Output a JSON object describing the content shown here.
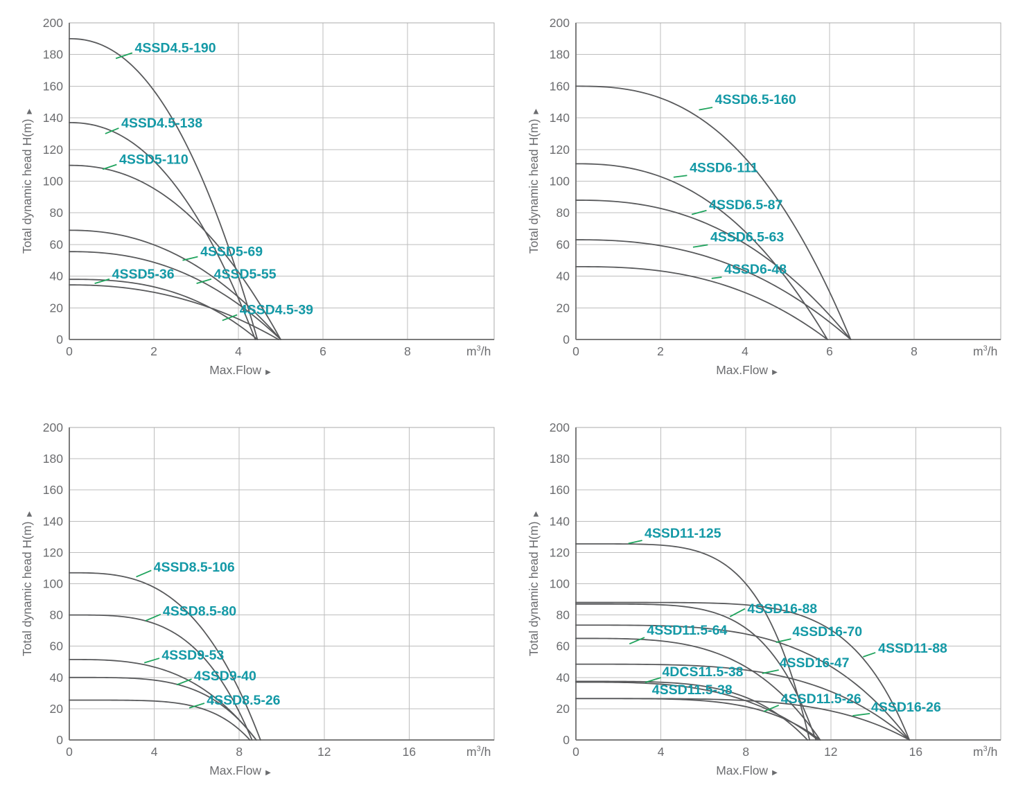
{
  "page": {
    "background": "#ffffff"
  },
  "colors": {
    "curve": "#58595B",
    "grid": "#BDBDBD",
    "plot_border": "#ABABAB",
    "axis": "#7B7B7B",
    "tick_text": "#6B6C6F",
    "curve_label": "#1499A6",
    "leader_line": "#1EA35C"
  },
  "axis_text": {
    "ylabel": "Total dynamic head H(m)",
    "xlabel": "Max.Flow",
    "x_unit_base": "m",
    "x_unit_sup": "3",
    "x_unit_rest": "/h",
    "arrow": "▶"
  },
  "chart_data": [
    {
      "id": "top-left",
      "type": "line",
      "ylabel": "Total dynamic head H(m)",
      "xlabel": "Max.Flow",
      "x_unit": "m³/h",
      "ylim": [
        0,
        200
      ],
      "y_tick_step": 20,
      "y_ticks": [
        0,
        20,
        40,
        60,
        80,
        100,
        120,
        140,
        160,
        180,
        200
      ],
      "x_ticks": [
        0,
        2,
        4,
        6,
        8
      ],
      "x_view_max": 10.05,
      "grid": true,
      "series": [
        {
          "name": "4SSD4.5-190",
          "shutoff_head_m": 190,
          "max_flow_m3h": 4.45,
          "drop_exponent": 2.2,
          "label": {
            "x": 1.55,
            "y": 184
          },
          "leader": [
            1.49,
            181,
            1.1,
            177.5
          ]
        },
        {
          "name": "4SSD4.5-138",
          "shutoff_head_m": 137,
          "max_flow_m3h": 4.4,
          "drop_exponent": 2.2,
          "label": {
            "x": 1.23,
            "y": 136.5
          },
          "leader": [
            1.17,
            133.5,
            0.85,
            130
          ]
        },
        {
          "name": "4SSD5-110",
          "shutoff_head_m": 110,
          "max_flow_m3h": 5.0,
          "drop_exponent": 2.2,
          "label": {
            "x": 1.18,
            "y": 113.5
          },
          "leader": [
            1.12,
            110.5,
            0.79,
            107.5
          ]
        },
        {
          "name": "4SSD5-69",
          "shutoff_head_m": 69,
          "max_flow_m3h": 5.0,
          "drop_exponent": 2.2,
          "label": {
            "x": 3.1,
            "y": 55.3
          },
          "leader": [
            3.04,
            52.3,
            2.68,
            50
          ]
        },
        {
          "name": "4SSD5-55",
          "shutoff_head_m": 55.5,
          "max_flow_m3h": 5.0,
          "drop_exponent": 2.3,
          "label": {
            "x": 3.42,
            "y": 41.2
          },
          "leader": [
            3.36,
            38.2,
            3.01,
            35.4
          ]
        },
        {
          "name": "4SSD5-36",
          "shutoff_head_m": 34.5,
          "max_flow_m3h": 4.95,
          "drop_exponent": 2.2,
          "label": {
            "x": 1.01,
            "y": 41.2
          },
          "leader": [
            0.95,
            38.2,
            0.6,
            35.4
          ]
        },
        {
          "name": "4SSD4.5-39",
          "shutoff_head_m": 38,
          "max_flow_m3h": 4.45,
          "drop_exponent": 2.6,
          "label": {
            "x": 4.03,
            "y": 18.6
          },
          "leader": [
            3.97,
            15.6,
            3.62,
            12
          ]
        }
      ]
    },
    {
      "id": "top-right",
      "type": "line",
      "ylabel": "Total dynamic head H(m)",
      "xlabel": "Max.Flow",
      "x_unit": "m³/h",
      "ylim": [
        0,
        200
      ],
      "y_tick_step": 20,
      "y_ticks": [
        0,
        20,
        40,
        60,
        80,
        100,
        120,
        140,
        160,
        180,
        200
      ],
      "x_ticks": [
        0,
        2,
        4,
        6,
        8
      ],
      "x_view_max": 10.05,
      "grid": true,
      "series": [
        {
          "name": "4SSD6.5-160",
          "shutoff_head_m": 160,
          "max_flow_m3h": 6.5,
          "drop_exponent": 2.6,
          "label": {
            "x": 3.29,
            "y": 151.4
          },
          "leader": [
            3.23,
            146.6,
            2.91,
            145
          ]
        },
        {
          "name": "4SSD6-111",
          "shutoff_head_m": 111,
          "max_flow_m3h": 5.95,
          "drop_exponent": 2.4,
          "label": {
            "x": 2.69,
            "y": 108.3
          },
          "leader": [
            2.63,
            103.6,
            2.31,
            102.5
          ]
        },
        {
          "name": "4SSD6.5-87",
          "shutoff_head_m": 88,
          "max_flow_m3h": 6.5,
          "drop_exponent": 2.4,
          "label": {
            "x": 3.15,
            "y": 84.9
          },
          "leader": [
            3.09,
            81.5,
            2.74,
            79
          ]
        },
        {
          "name": "4SSD6.5-63",
          "shutoff_head_m": 63,
          "max_flow_m3h": 6.5,
          "drop_exponent": 2.4,
          "label": {
            "x": 3.18,
            "y": 64.6
          },
          "leader": [
            3.12,
            59.8,
            2.77,
            58.3
          ]
        },
        {
          "name": "4SSD6-48",
          "shutoff_head_m": 46,
          "max_flow_m3h": 5.95,
          "drop_exponent": 2.6,
          "label": {
            "x": 3.51,
            "y": 44.2
          },
          "leader": [
            3.45,
            39.4,
            3.21,
            38.6
          ]
        }
      ]
    },
    {
      "id": "bottom-left",
      "type": "line",
      "ylabel": "Total dynamic head H(m)",
      "xlabel": "Max.Flow",
      "x_unit": "m³/h",
      "ylim": [
        0,
        200
      ],
      "y_tick_step": 20,
      "y_ticks": [
        0,
        20,
        40,
        60,
        80,
        100,
        120,
        140,
        160,
        180,
        200
      ],
      "x_ticks": [
        0,
        4,
        8,
        12,
        16
      ],
      "x_view_max": 20.0,
      "grid": true,
      "series": [
        {
          "name": "4SSD8.5-106",
          "shutoff_head_m": 107,
          "max_flow_m3h": 9.0,
          "drop_exponent": 3.0,
          "label": {
            "x": 3.97,
            "y": 110.4
          },
          "leader": [
            3.86,
            108.5,
            3.15,
            104.4
          ]
        },
        {
          "name": "4SSD8.5-80",
          "shutoff_head_m": 80,
          "max_flow_m3h": 8.6,
          "drop_exponent": 3.5,
          "label": {
            "x": 4.4,
            "y": 82.3
          },
          "leader": [
            4.3,
            80.4,
            3.59,
            76.3
          ]
        },
        {
          "name": "4SSD9-53",
          "shutoff_head_m": 51.5,
          "max_flow_m3h": 8.8,
          "drop_exponent": 3.0,
          "label": {
            "x": 4.35,
            "y": 54.1
          },
          "leader": [
            4.24,
            52.3,
            3.53,
            49.4
          ]
        },
        {
          "name": "4SSD9-40",
          "shutoff_head_m": 40,
          "max_flow_m3h": 8.8,
          "drop_exponent": 4.0,
          "label": {
            "x": 5.87,
            "y": 40.8
          },
          "leader": [
            5.76,
            39,
            5.06,
            35.3
          ]
        },
        {
          "name": "4SSD8.5-26",
          "shutoff_head_m": 25.5,
          "max_flow_m3h": 8.5,
          "drop_exponent": 5.0,
          "label": {
            "x": 6.47,
            "y": 25.3
          },
          "leader": [
            6.36,
            23.5,
            5.65,
            20.5
          ]
        }
      ]
    },
    {
      "id": "bottom-right",
      "type": "line",
      "ylabel": "Total dynamic head H(m)",
      "xlabel": "Max.Flow",
      "x_unit": "m³/h",
      "ylim": [
        0,
        200
      ],
      "y_tick_step": 20,
      "y_ticks": [
        0,
        20,
        40,
        60,
        80,
        100,
        120,
        140,
        160,
        180,
        200
      ],
      "x_ticks": [
        0,
        4,
        8,
        12,
        16
      ],
      "x_view_max": 20.0,
      "grid": true,
      "series": [
        {
          "name": "4SSD11-125",
          "shutoff_head_m": 125.5,
          "max_flow_m3h": 11.0,
          "drop_exponent": 5.0,
          "label": {
            "x": 3.23,
            "y": 132.2
          },
          "leader": [
            3.12,
            127.7,
            2.47,
            125.8
          ]
        },
        {
          "name": "4SSD16-88",
          "shutoff_head_m": 88,
          "max_flow_m3h": 15.7,
          "drop_exponent": 6.0,
          "label": {
            "x": 8.07,
            "y": 83.8
          },
          "leader": [
            7.96,
            84,
            7.25,
            78.9
          ]
        },
        {
          "name": "4SSD11-88",
          "shutoff_head_m": 87,
          "max_flow_m3h": 11.3,
          "drop_exponent": 5.0,
          "label": {
            "x": 14.23,
            "y": 58.5
          },
          "leader": [
            14.1,
            55.9,
            13.52,
            53.2
          ]
        },
        {
          "name": "4SSD16-70",
          "shutoff_head_m": 73.5,
          "max_flow_m3h": 15.7,
          "drop_exponent": 3.8,
          "label": {
            "x": 10.19,
            "y": 69.2
          },
          "leader": [
            10.13,
            64.7,
            9.42,
            62.5
          ]
        },
        {
          "name": "4SSD11.5-64",
          "shutoff_head_m": 65,
          "max_flow_m3h": 11.5,
          "drop_exponent": 3.5,
          "label": {
            "x": 3.34,
            "y": 70.1
          },
          "leader": [
            3.23,
            65.6,
            2.52,
            61.5
          ]
        },
        {
          "name": "4SSD16-47",
          "shutoff_head_m": 48.5,
          "max_flow_m3h": 15.7,
          "drop_exponent": 3.8,
          "label": {
            "x": 9.58,
            "y": 49.2
          },
          "leader": [
            9.55,
            44.8,
            8.77,
            42.6
          ]
        },
        {
          "name": "4DCS11.5-38",
          "shutoff_head_m": 37.5,
          "max_flow_m3h": 10.9,
          "drop_exponent": 4.2,
          "label": {
            "x": 4.06,
            "y": 43.5
          },
          "leader": [
            4.0,
            39.9,
            3.26,
            36.8
          ]
        },
        {
          "name": "4SSD11.5-38",
          "shutoff_head_m": 37.0,
          "max_flow_m3h": 11.4,
          "drop_exponent": 3.2,
          "label": {
            "x": 3.58,
            "y": 31.9
          },
          "leader": null
        },
        {
          "name": "4SSD11.5-26",
          "shutoff_head_m": 26.5,
          "max_flow_m3h": 11.5,
          "drop_exponent": 4.5,
          "label": {
            "x": 9.65,
            "y": 26.2
          },
          "leader": [
            9.55,
            22.2,
            8.84,
            18.2
          ]
        },
        {
          "name": "4SSD16-26",
          "shutoff_head_m": 26.5,
          "max_flow_m3h": 15.7,
          "drop_exponent": 4.5,
          "label": {
            "x": 13.9,
            "y": 20.8
          },
          "leader": [
            13.84,
            16.9,
            13.03,
            15.5
          ]
        }
      ]
    }
  ]
}
